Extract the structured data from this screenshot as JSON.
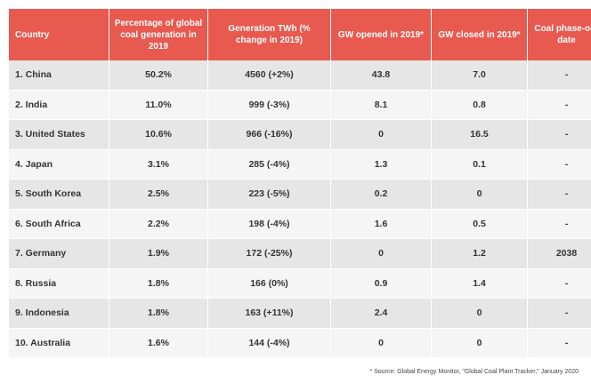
{
  "chart_data": {
    "type": "table",
    "columns": [
      "Country",
      "Percentage of global coal generation in 2019",
      "Generation TWh (% change in 2019)",
      "GW opened in 2019*",
      "GW closed in 2019*",
      "Coal phase-out date"
    ],
    "rows": [
      [
        "1. China",
        "50.2%",
        "4560 (+2%)",
        "43.8",
        "7.0",
        "-"
      ],
      [
        "2. India",
        "11.0%",
        "999 (-3%)",
        "8.1",
        "0.8",
        "-"
      ],
      [
        "3. United States",
        "10.6%",
        "966 (-16%)",
        "0",
        "16.5",
        "-"
      ],
      [
        "4. Japan",
        "3.1%",
        "285 (-4%)",
        "1.3",
        "0.1",
        "-"
      ],
      [
        "5. South Korea",
        "2.5%",
        "223 (-5%)",
        "0.2",
        "0",
        "-"
      ],
      [
        "6. South Africa",
        "2.2%",
        "198 (-4%)",
        "1.6",
        "0.5",
        "-"
      ],
      [
        "7. Germany",
        "1.9%",
        "172 (-25%)",
        "0",
        "1.2",
        "2038"
      ],
      [
        "8. Russia",
        "1.8%",
        "166 (0%)",
        "0.9",
        "1.4",
        "-"
      ],
      [
        "9. Indonesia",
        "1.8%",
        "163 (+11%)",
        "2.4",
        "0",
        "-"
      ],
      [
        "10. Australia",
        "1.6%",
        "144 (-4%)",
        "0",
        "0",
        "-"
      ]
    ],
    "source": "* Source: Global Energy Monitor, \"Global Coal Plant Tracker,\" January 2020"
  },
  "colors": {
    "header_bg": "#e8594f",
    "header_text": "#ffffff",
    "row_odd": "#e6e6e6",
    "row_even": "#f5f5f5"
  }
}
